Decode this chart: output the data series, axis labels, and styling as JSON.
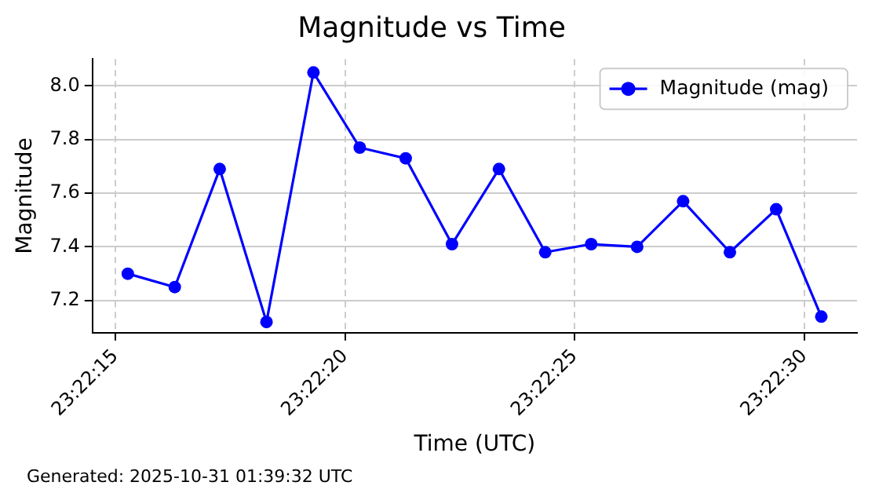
{
  "chart_data": {
    "type": "line",
    "title": "Magnitude vs Time",
    "xlabel": "Time (UTC)",
    "ylabel": "Magnitude",
    "x": [
      23.370908,
      23.371192,
      23.371464,
      23.371747,
      23.372031,
      23.372311,
      23.372589,
      23.372869,
      23.373153,
      23.373433,
      23.373711,
      23.373989,
      23.374267,
      23.37455,
      23.37483,
      23.375103
    ],
    "series": [
      {
        "name": "Magnitude (mag)",
        "color": "#0000ff",
        "values": [
          7.3,
          7.25,
          7.69,
          7.12,
          8.05,
          7.77,
          7.73,
          7.41,
          7.69,
          7.38,
          7.41,
          7.4,
          7.57,
          7.38,
          7.54,
          7.14
        ]
      }
    ],
    "xlim": [
      23.370694,
      23.375319
    ],
    "xticks": [
      {
        "value": 23.370833,
        "label": "23:22:15"
      },
      {
        "value": 23.372222,
        "label": "23:22:20"
      },
      {
        "value": 23.373611,
        "label": "23:22:25"
      },
      {
        "value": 23.375,
        "label": "23:22:30"
      }
    ],
    "ylim": [
      7.08,
      8.1
    ],
    "yticks": [
      7.2,
      7.4,
      7.6,
      7.8,
      {
        "value": 8,
        "label": "8.0"
      }
    ],
    "grid": true,
    "legend": "top right",
    "marker": "circle",
    "line_style": "solid",
    "annotations": [
      "Generated: 2025-10-31 01:39:32 UTC"
    ]
  }
}
